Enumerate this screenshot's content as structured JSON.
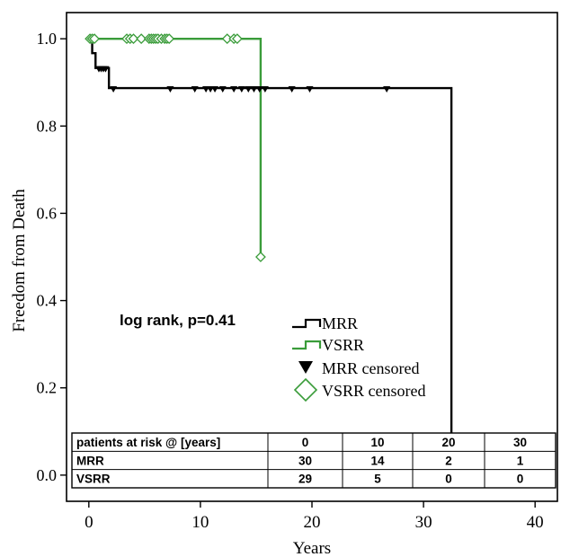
{
  "chart_data": {
    "type": "line",
    "subtype": "kaplan-meier-step",
    "xlabel": "Years",
    "ylabel": "Freedom from Death",
    "xlim": [
      -2,
      42
    ],
    "ylim": [
      -0.06,
      1.06
    ],
    "x_ticks": [
      0,
      10,
      20,
      30,
      40
    ],
    "y_ticks": [
      0.0,
      0.2,
      0.4,
      0.6,
      0.8,
      1.0
    ],
    "y_tick_labels": [
      "0.0",
      "0.2",
      "0.4",
      "0.6",
      "0.8",
      "1.0"
    ],
    "grid": false,
    "annotation": "log rank, p=0.41",
    "series": [
      {
        "name": "MRR",
        "color": "#000000",
        "steps": [
          {
            "x": 0,
            "y": 1.0
          },
          {
            "x": 0.3,
            "y": 0.967
          },
          {
            "x": 0.6,
            "y": 0.933
          },
          {
            "x": 1.8,
            "y": 0.887
          },
          {
            "x": 32.5,
            "y": 0.0
          }
        ],
        "end_x": 32.5,
        "censored": [
          0.9,
          1.1,
          1.3,
          1.5,
          2.2,
          7.3,
          9.5,
          10.5,
          10.9,
          11.3,
          12.0,
          13.0,
          13.7,
          14.3,
          14.8,
          15.3,
          15.8,
          18.2,
          19.8,
          26.7
        ]
      },
      {
        "name": "VSRR",
        "color": "#3a9c3a",
        "steps": [
          {
            "x": 0,
            "y": 1.0
          },
          {
            "x": 15.4,
            "y": 0.5
          }
        ],
        "end_x": 15.4,
        "censored": [
          0.1,
          0.3,
          0.5,
          3.4,
          3.7,
          4.0,
          4.7,
          5.4,
          5.6,
          5.8,
          6.0,
          6.2,
          6.5,
          6.8,
          7.0,
          7.2,
          12.4,
          13.0,
          13.3,
          15.4
        ]
      }
    ],
    "legend": {
      "placement": "center",
      "entries": [
        "MRR",
        "VSRR",
        "MRR censored",
        "VSRR censored"
      ]
    }
  },
  "risk_table": {
    "header": [
      "patients at risk @ [years]",
      "0",
      "10",
      "20",
      "30"
    ],
    "rows": [
      [
        "MRR",
        "30",
        "14",
        "2",
        "1"
      ],
      [
        "VSRR",
        "29",
        "5",
        "0",
        "0"
      ]
    ]
  }
}
